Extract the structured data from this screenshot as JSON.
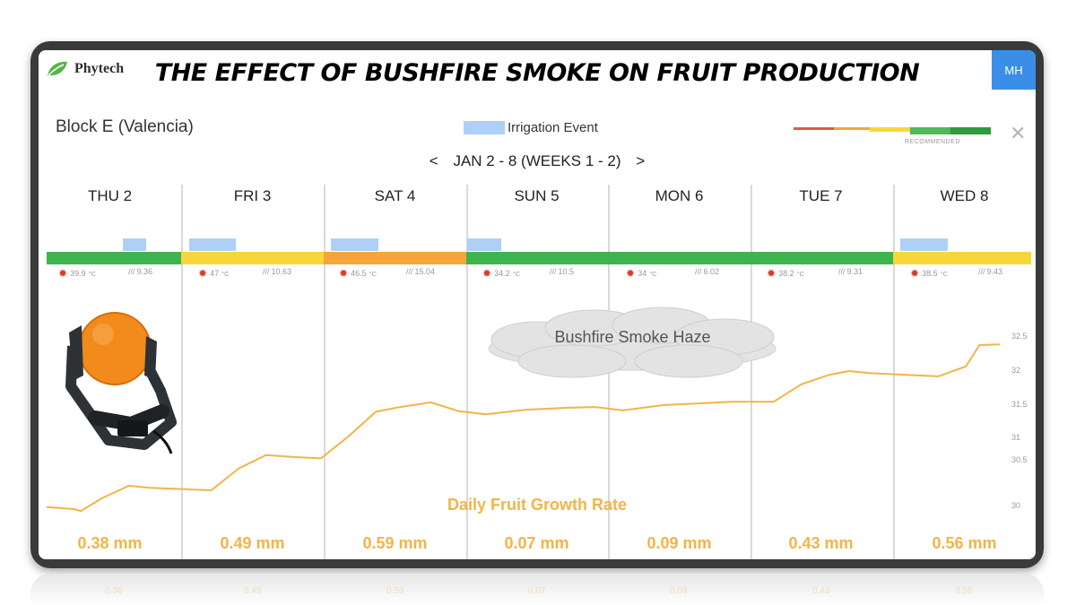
{
  "app": {
    "logo_text": "Phytech",
    "title": "THE EFFECT OF BUSHFIRE SMOKE ON FRUIT PRODUCTION",
    "user_initials": "MH"
  },
  "block": {
    "name": "Block E (Valencia)"
  },
  "legend": {
    "label": "Irrigation Event",
    "swatch_color": "#aed0f6",
    "scale_caption": "RECOMMENDED"
  },
  "nav": {
    "prev": "<",
    "range": "JAN 2 - 8 (WEEKS 1 - 2)",
    "next": ">"
  },
  "status_colors": {
    "green": "#3fb34f",
    "yellow": "#f7d63a",
    "orange": "#f6a53a"
  },
  "days": [
    {
      "label": "THU 2",
      "status": "green",
      "temp": "39.9",
      "temp_unit": "°C",
      "et": "9.36",
      "growth": "0.38 mm"
    },
    {
      "label": "FRI 3",
      "status": "yellow",
      "temp": "47",
      "temp_unit": "°C",
      "et": "10.63",
      "growth": "0.49 mm"
    },
    {
      "label": "SAT 4",
      "status": "orange",
      "temp": "46.5",
      "temp_unit": "°C",
      "et": "15.04",
      "growth": "0.59 mm"
    },
    {
      "label": "SUN 5",
      "status": "green",
      "temp": "34.2",
      "temp_unit": "°C",
      "et": "10.5",
      "growth": "0.07 mm"
    },
    {
      "label": "MON 6",
      "status": "green",
      "temp": "34",
      "temp_unit": "°C",
      "et": "6.02",
      "growth": "0.09 mm"
    },
    {
      "label": "TUE 7",
      "status": "green",
      "temp": "38.2",
      "temp_unit": "°C",
      "et": "9.31",
      "growth": "0.43 mm"
    },
    {
      "label": "WED 8",
      "status": "yellow",
      "temp": "38.5",
      "temp_unit": "°C",
      "et": "9.43",
      "growth": "0.56 mm"
    }
  ],
  "annotations": {
    "smoke": "Bushfire Smoke Haze",
    "growth_label": "Daily Fruit Growth Rate"
  },
  "reflection_values": [
    "0.38",
    "0.49",
    "0.59",
    "0.07",
    "0.09",
    "0.43",
    "0.56"
  ],
  "chart_data": {
    "type": "line",
    "y_ticks": [
      "30",
      "30.5",
      "31",
      "31.5",
      "32",
      "32.5"
    ],
    "ylim": [
      30,
      32.5
    ],
    "x_categories": [
      "THU 2",
      "FRI 3",
      "SAT 4",
      "SUN 5",
      "MON 6",
      "TUE 7",
      "WED 8"
    ],
    "line_color": "#f2b447",
    "series": [
      {
        "x": [
          0,
          0.2,
          0.25,
          0.4,
          0.6,
          0.75,
          1.0,
          1.2,
          1.4,
          1.6,
          1.8,
          2.0,
          2.2,
          2.4,
          2.55,
          2.8,
          3.0,
          3.2,
          3.5,
          3.8,
          4.0,
          4.2,
          4.5,
          4.8,
          5.0,
          5.3,
          5.5,
          5.7,
          5.85,
          6.0,
          6.2,
          6.5,
          6.7,
          6.8,
          6.95
        ],
        "values": [
          29.99,
          29.96,
          29.93,
          30.12,
          30.31,
          30.28,
          30.26,
          30.24,
          30.57,
          30.77,
          30.74,
          30.72,
          31.05,
          31.42,
          31.48,
          31.56,
          31.43,
          31.38,
          31.45,
          31.48,
          31.49,
          31.44,
          31.52,
          31.55,
          31.57,
          31.57,
          31.83,
          31.97,
          32.03,
          32.0,
          31.98,
          31.95,
          32.1,
          32.42,
          32.43
        ]
      }
    ]
  }
}
